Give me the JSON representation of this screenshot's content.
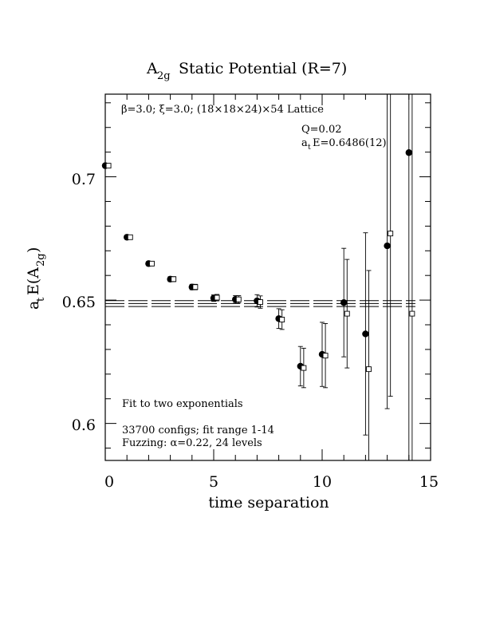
{
  "chart_data": {
    "type": "scatter",
    "title": "Static Potential (R=7)",
    "title_symbol": "A",
    "title_subscript": "2g",
    "xlabel": "time separation",
    "ylabel_base": "a",
    "ylabel_sub_t": "t",
    "ylabel_main": "E(A",
    "ylabel_sub_2g": "2g",
    "ylabel_close": ")",
    "xlim": [
      0,
      15
    ],
    "ylim": [
      0.585,
      0.7335
    ],
    "x_ticks": [
      0,
      5,
      10,
      15
    ],
    "x_tick_labels": [
      "0",
      "5",
      "10",
      "15"
    ],
    "y_ticks": [
      0.6,
      0.65,
      0.7
    ],
    "y_tick_labels": [
      "0.6",
      "0.65",
      "0.7"
    ],
    "annotations": {
      "lattice": "β=3.0; ξ=3.0; (18×18×24)×54 Lattice",
      "q_value": "Q=0.02",
      "energy_value": "a",
      "energy_sub": "t",
      "energy_rest": "E=0.6486(12)",
      "fit_note": "Fit to two exponentials",
      "configs": "33700 configs; fit range 1-14",
      "fuzzing": "Fuzzing: α=0.22, 24 levels"
    },
    "fit": {
      "central": 0.6486,
      "error": 0.0012,
      "x_range": [
        0,
        14.3
      ]
    },
    "series": [
      {
        "marker": "filled-circle",
        "x": [
          0,
          1,
          2,
          3,
          4,
          5,
          6,
          7,
          8,
          9,
          10,
          11,
          12,
          13,
          14
        ],
        "y": [
          0.7045,
          0.6755,
          0.6648,
          0.6585,
          0.6553,
          0.6508,
          0.6503,
          0.6497,
          0.6425,
          0.6232,
          0.628,
          0.649,
          0.6363,
          0.672,
          0.7098
        ],
        "err": [
          0.0006,
          0.0008,
          0.0009,
          0.001,
          0.0011,
          0.0013,
          0.0015,
          0.0025,
          0.004,
          0.008,
          0.013,
          0.022,
          0.041,
          0.066,
          0.16
        ]
      },
      {
        "marker": "open-square",
        "x": [
          0.15,
          1.15,
          2.15,
          3.15,
          4.15,
          5.15,
          6.15,
          7.15,
          8.15,
          9.15,
          10.15,
          11.15,
          12.15,
          13.15,
          14.15
        ],
        "y": [
          0.7045,
          0.6755,
          0.6648,
          0.6585,
          0.6553,
          0.651,
          0.6503,
          0.6492,
          0.6421,
          0.6225,
          0.6275,
          0.6445,
          0.622,
          0.677,
          0.6445
        ],
        "err": [
          0.0006,
          0.0008,
          0.0009,
          0.001,
          0.0011,
          0.0013,
          0.0015,
          0.0025,
          0.004,
          0.008,
          0.013,
          0.022,
          0.04,
          0.066,
          0.16
        ]
      }
    ]
  }
}
